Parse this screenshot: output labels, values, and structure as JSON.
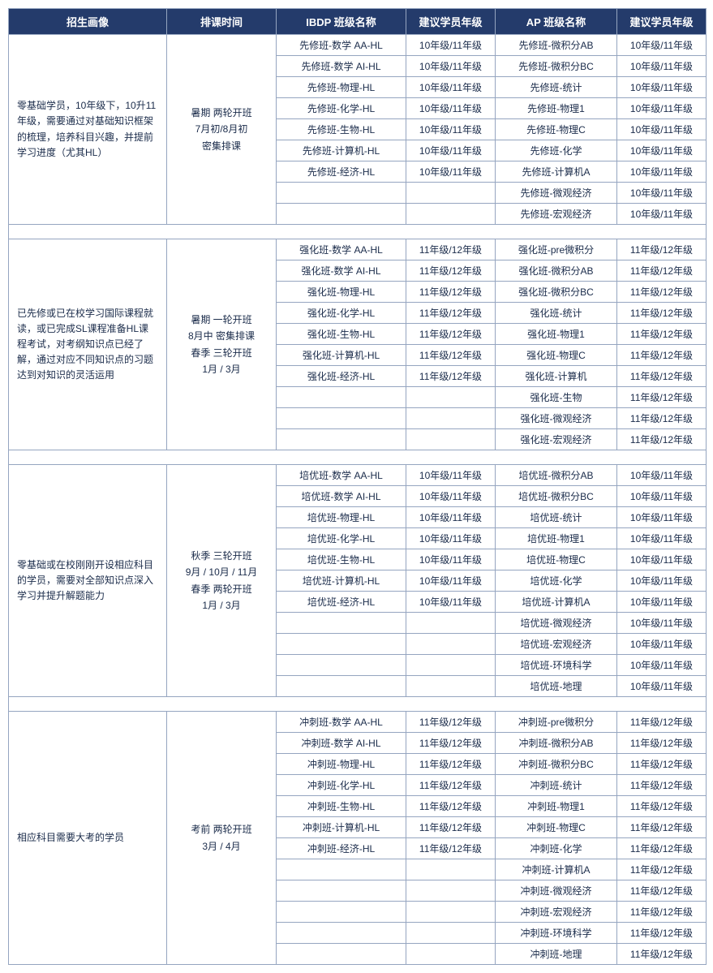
{
  "headers": {
    "profile": "招生画像",
    "timing": "排课时间",
    "ibdp": "IBDP 班级名称",
    "grade1": "建议学员年级",
    "ap": "AP 班级名称",
    "grade2": "建议学员年级"
  },
  "sections": [
    {
      "profile": "零基础学员，10年级下，10升11年级，需要通过对基础知识框架的梳理，培养科目兴趣，并提前学习进度（尤其HL）",
      "timing": "暑期 两轮开班\n7月初/8月初\n密集排课",
      "rows": [
        {
          "ibdp": "先修班-数学 AA-HL",
          "g1": "10年级/11年级",
          "ap": "先修班-微积分AB",
          "g2": "10年级/11年级"
        },
        {
          "ibdp": "先修班-数学 AI-HL",
          "g1": "10年级/11年级",
          "ap": "先修班-微积分BC",
          "g2": "10年级/11年级"
        },
        {
          "ibdp": "先修班-物理-HL",
          "g1": "10年级/11年级",
          "ap": "先修班-统计",
          "g2": "10年级/11年级"
        },
        {
          "ibdp": "先修班-化学-HL",
          "g1": "10年级/11年级",
          "ap": "先修班-物理1",
          "g2": "10年级/11年级"
        },
        {
          "ibdp": "先修班-生物-HL",
          "g1": "10年级/11年级",
          "ap": "先修班-物理C",
          "g2": "10年级/11年级"
        },
        {
          "ibdp": "先修班-计算机-HL",
          "g1": "10年级/11年级",
          "ap": "先修班-化学",
          "g2": "10年级/11年级"
        },
        {
          "ibdp": "先修班-经济-HL",
          "g1": "10年级/11年级",
          "ap": "先修班-计算机A",
          "g2": "10年级/11年级"
        },
        {
          "ibdp": "",
          "g1": "",
          "ap": "先修班-微观经济",
          "g2": "10年级/11年级"
        },
        {
          "ibdp": "",
          "g1": "",
          "ap": "先修班-宏观经济",
          "g2": "10年级/11年级"
        }
      ]
    },
    {
      "profile": "已先修或已在校学习国际课程就读，或已完成SL课程准备HL课程考试，对考纲知识点已经了解，通过对应不同知识点的习题达到对知识的灵活运用",
      "timing": "暑期 一轮开班\n8月中 密集排课\n春季 三轮开班\n1月 / 3月",
      "rows": [
        {
          "ibdp": "强化班-数学 AA-HL",
          "g1": "11年级/12年级",
          "ap": "强化班-pre微积分",
          "g2": "11年级/12年级"
        },
        {
          "ibdp": "强化班-数学 AI-HL",
          "g1": "11年级/12年级",
          "ap": "强化班-微积分AB",
          "g2": "11年级/12年级"
        },
        {
          "ibdp": "强化班-物理-HL",
          "g1": "11年级/12年级",
          "ap": "强化班-微积分BC",
          "g2": "11年级/12年级"
        },
        {
          "ibdp": "强化班-化学-HL",
          "g1": "11年级/12年级",
          "ap": "强化班-统计",
          "g2": "11年级/12年级"
        },
        {
          "ibdp": "强化班-生物-HL",
          "g1": "11年级/12年级",
          "ap": "强化班-物理1",
          "g2": "11年级/12年级"
        },
        {
          "ibdp": "强化班-计算机-HL",
          "g1": "11年级/12年级",
          "ap": "强化班-物理C",
          "g2": "11年级/12年级"
        },
        {
          "ibdp": "强化班-经济-HL",
          "g1": "11年级/12年级",
          "ap": "强化班-计算机",
          "g2": "11年级/12年级"
        },
        {
          "ibdp": "",
          "g1": "",
          "ap": "强化班-生物",
          "g2": "11年级/12年级"
        },
        {
          "ibdp": "",
          "g1": "",
          "ap": "强化班-微观经济",
          "g2": "11年级/12年级"
        },
        {
          "ibdp": "",
          "g1": "",
          "ap": "强化班-宏观经济",
          "g2": "11年级/12年级"
        }
      ]
    },
    {
      "profile": "零基础或在校刚刚开设相应科目的学员，需要对全部知识点深入学习并提升解题能力",
      "timing": "秋季 三轮开班\n9月 / 10月 / 11月\n春季 两轮开班\n1月 / 3月",
      "rows": [
        {
          "ibdp": "培优班-数学 AA-HL",
          "g1": "10年级/11年级",
          "ap": "培优班-微积分AB",
          "g2": "10年级/11年级"
        },
        {
          "ibdp": "培优班-数学 AI-HL",
          "g1": "10年级/11年级",
          "ap": "培优班-微积分BC",
          "g2": "10年级/11年级"
        },
        {
          "ibdp": "培优班-物理-HL",
          "g1": "10年级/11年级",
          "ap": "培优班-统计",
          "g2": "10年级/11年级"
        },
        {
          "ibdp": "培优班-化学-HL",
          "g1": "10年级/11年级",
          "ap": "培优班-物理1",
          "g2": "10年级/11年级"
        },
        {
          "ibdp": "培优班-生物-HL",
          "g1": "10年级/11年级",
          "ap": "培优班-物理C",
          "g2": "10年级/11年级"
        },
        {
          "ibdp": "培优班-计算机-HL",
          "g1": "10年级/11年级",
          "ap": "培优班-化学",
          "g2": "10年级/11年级"
        },
        {
          "ibdp": "培优班-经济-HL",
          "g1": "10年级/11年级",
          "ap": "培优班-计算机A",
          "g2": "10年级/11年级"
        },
        {
          "ibdp": "",
          "g1": "",
          "ap": "培优班-微观经济",
          "g2": "10年级/11年级"
        },
        {
          "ibdp": "",
          "g1": "",
          "ap": "培优班-宏观经济",
          "g2": "10年级/11年级"
        },
        {
          "ibdp": "",
          "g1": "",
          "ap": "培优班-环境科学",
          "g2": "10年级/11年级"
        },
        {
          "ibdp": "",
          "g1": "",
          "ap": "培优班-地理",
          "g2": "10年级/11年级"
        }
      ]
    },
    {
      "profile": "相应科目需要大考的学员",
      "timing": "考前 两轮开班\n3月 / 4月",
      "rows": [
        {
          "ibdp": "冲刺班-数学 AA-HL",
          "g1": "11年级/12年级",
          "ap": "冲刺班-pre微积分",
          "g2": "11年级/12年级"
        },
        {
          "ibdp": "冲刺班-数学 AI-HL",
          "g1": "11年级/12年级",
          "ap": "冲刺班-微积分AB",
          "g2": "11年级/12年级"
        },
        {
          "ibdp": "冲刺班-物理-HL",
          "g1": "11年级/12年级",
          "ap": "冲刺班-微积分BC",
          "g2": "11年级/12年级"
        },
        {
          "ibdp": "冲刺班-化学-HL",
          "g1": "11年级/12年级",
          "ap": "冲刺班-统计",
          "g2": "11年级/12年级"
        },
        {
          "ibdp": "冲刺班-生物-HL",
          "g1": "11年级/12年级",
          "ap": "冲刺班-物理1",
          "g2": "11年级/12年级"
        },
        {
          "ibdp": "冲刺班-计算机-HL",
          "g1": "11年级/12年级",
          "ap": "冲刺班-物理C",
          "g2": "11年级/12年级"
        },
        {
          "ibdp": "冲刺班-经济-HL",
          "g1": "11年级/12年级",
          "ap": "冲刺班-化学",
          "g2": "11年级/12年级"
        },
        {
          "ibdp": "",
          "g1": "",
          "ap": "冲刺班-计算机A",
          "g2": "11年级/12年级"
        },
        {
          "ibdp": "",
          "g1": "",
          "ap": "冲刺班-微观经济",
          "g2": "11年级/12年级"
        },
        {
          "ibdp": "",
          "g1": "",
          "ap": "冲刺班-宏观经济",
          "g2": "11年级/12年级"
        },
        {
          "ibdp": "",
          "g1": "",
          "ap": "冲刺班-环境科学",
          "g2": "11年级/12年级"
        },
        {
          "ibdp": "",
          "g1": "",
          "ap": "冲刺班-地理",
          "g2": "11年级/12年级"
        }
      ]
    }
  ],
  "style": {
    "header_bg": "#243b6b",
    "header_color": "#ffffff",
    "border_color": "#95a5c0",
    "text_color": "#1a2b4a",
    "bg_color": "#ffffff",
    "font_size_header": 13,
    "font_size_cell": 12
  }
}
